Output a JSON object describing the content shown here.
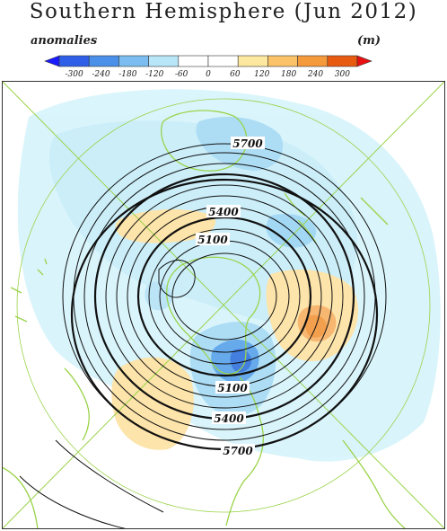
{
  "title": "Southern Hemisphere (Jun 2012)",
  "legend": {
    "left_label": "anomalies",
    "unit_label": "(m)",
    "ticks": [
      "-300",
      "-240",
      "-180",
      "-120",
      "-60",
      "0",
      "60",
      "120",
      "180",
      "240",
      "300"
    ],
    "colors": [
      "#1a1aff",
      "#2f5fe8",
      "#4a90e8",
      "#7bbdf0",
      "#b8e6f8",
      "#ffffff",
      "#ffffff",
      "#fde8a0",
      "#fbc268",
      "#f59a3a",
      "#e85a10",
      "#e81010"
    ]
  },
  "map": {
    "contour_labels": {
      "outer": "5700",
      "mid": "5400",
      "inner": "5100",
      "lower_inner": "5100",
      "lower_mid": "5400",
      "lower_outer": "5700"
    },
    "coastline_color": "#9ad34a",
    "grid_color": "#9ad34a"
  }
}
